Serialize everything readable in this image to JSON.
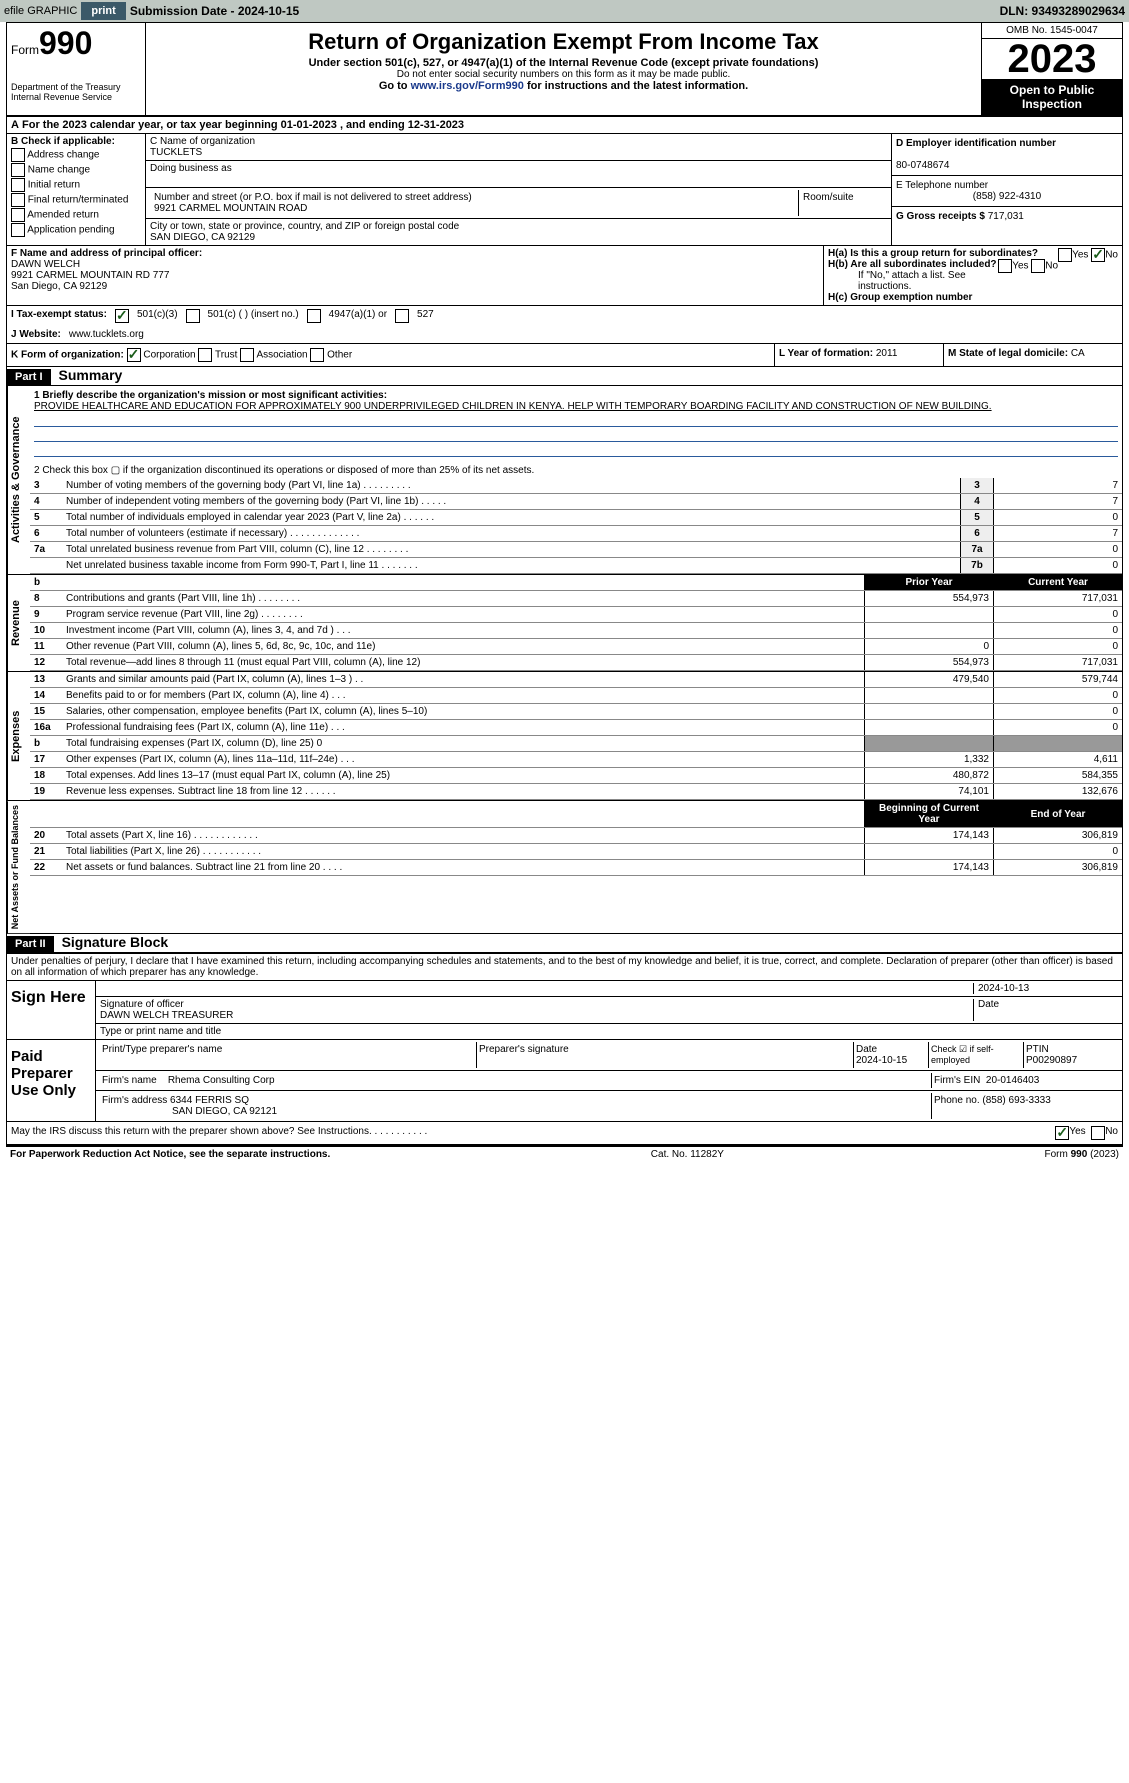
{
  "topbar": {
    "efile": "efile GRAPHIC",
    "print": "print",
    "sub_date_label": "Submission Date - 2024-10-15",
    "dln": "DLN: 93493289029634"
  },
  "header": {
    "form": "Form",
    "num": "990",
    "dept": "Department of the Treasury Internal Revenue Service",
    "title": "Return of Organization Exempt From Income Tax",
    "sub": "Under section 501(c), 527, or 4947(a)(1) of the Internal Revenue Code (except private foundations)",
    "sub2": "Do not enter social security numbers on this form as it may be made public.",
    "sub3": "Go to www.irs.gov/Form990 for instructions and the latest information.",
    "omb": "OMB No. 1545-0047",
    "year": "2023",
    "open": "Open to Public Inspection"
  },
  "row_a": "For the 2023 calendar year, or tax year beginning 01-01-2023   , and ending 12-31-2023",
  "checkboxes_b": [
    "Address change",
    "Name change",
    "Initial return",
    "Final return/terminated",
    "Amended return",
    "Application pending"
  ],
  "check_label": "B Check if applicable:",
  "org": {
    "name_label": "C Name of organization",
    "name": "TUCKLETS",
    "dba_label": "Doing business as",
    "street_label": "Number and street (or P.O. box if mail is not delivered to street address)",
    "room_label": "Room/suite",
    "street": "9921 CARMEL MOUNTAIN ROAD",
    "city_label": "City or town, state or province, country, and ZIP or foreign postal code",
    "city": "SAN DIEGO, CA  92129"
  },
  "ein": {
    "label": "D Employer identification number",
    "value": "80-0748674"
  },
  "phone": {
    "label": "E Telephone number",
    "value": "(858) 922-4310"
  },
  "gross": {
    "label": "G Gross receipts $",
    "value": "717,031"
  },
  "officer": {
    "label": "F  Name and address of principal officer:",
    "name": "DAWN WELCH",
    "addr1": "9921 CARMEL MOUNTAIN RD 777",
    "addr2": "San Diego, CA  92129"
  },
  "h_section": {
    "ha": "H(a)  Is this a group return for subordinates?",
    "hb": "H(b)  Are all subordinates included?",
    "hb_note": "If \"No,\" attach a list. See instructions.",
    "hc": "H(c)  Group exemption number",
    "yes": "Yes",
    "no": "No"
  },
  "tax_status": {
    "label": "I   Tax-exempt status:",
    "opt1": "501(c)(3)",
    "opt2": "501(c) (  ) (insert no.)",
    "opt3": "4947(a)(1) or",
    "opt4": "527"
  },
  "website": {
    "label": "J   Website:",
    "value": "www.tucklets.org"
  },
  "k": {
    "label": "K Form of organization:",
    "corp": "Corporation",
    "trust": "Trust",
    "assoc": "Association",
    "other": "Other"
  },
  "l": {
    "label": "L Year of formation:",
    "value": "2011"
  },
  "m": {
    "label": "M State of legal domicile:",
    "value": "CA"
  },
  "part1": {
    "num": "Part I",
    "title": "Summary"
  },
  "mission": {
    "label": "1   Briefly describe the organization's mission or most significant activities:",
    "text": "PROVIDE HEALTHCARE AND EDUCATION FOR APPROXIMATELY 900 UNDERPRIVILEGED CHILDREN IN KENYA. HELP WITH TEMPORARY BOARDING FACILITY AND CONSTRUCTION OF NEW BUILDING."
  },
  "line2": "2   Check this box  ▢  if the organization discontinued its operations or disposed of more than 25% of its net assets.",
  "gov_rows": [
    {
      "n": "3",
      "t": "Number of voting members of the governing body (Part VI, line 1a)   .   .   .   .   .   .   .   .   .",
      "l": "3",
      "v": "7"
    },
    {
      "n": "4",
      "t": "Number of independent voting members of the governing body (Part VI, line 1b)   .   .   .   .   .",
      "l": "4",
      "v": "7"
    },
    {
      "n": "5",
      "t": "Total number of individuals employed in calendar year 2023 (Part V, line 2a)   .   .   .   .   .   .",
      "l": "5",
      "v": "0"
    },
    {
      "n": "6",
      "t": "Total number of volunteers (estimate if necessary)   .   .   .   .   .   .   .   .   .   .   .   .   .",
      "l": "6",
      "v": "7"
    },
    {
      "n": "7a",
      "t": "Total unrelated business revenue from Part VIII, column (C), line 12   .   .   .   .   .   .   .   .",
      "l": "7a",
      "v": "0"
    },
    {
      "n": "",
      "t": "Net unrelated business taxable income from Form 990-T, Part I, line 11   .   .   .   .   .   .   .",
      "l": "7b",
      "v": "0"
    }
  ],
  "col_headers": {
    "n": "b",
    "prior": "Prior Year",
    "current": "Current Year"
  },
  "rev_rows": [
    {
      "n": "8",
      "t": "Contributions and grants (Part VIII, line 1h)   .   .   .   .   .   .   .   .",
      "p": "554,973",
      "c": "717,031"
    },
    {
      "n": "9",
      "t": "Program service revenue (Part VIII, line 2g)   .   .   .   .   .   .   .   .",
      "p": "",
      "c": "0"
    },
    {
      "n": "10",
      "t": "Investment income (Part VIII, column (A), lines 3, 4, and 7d )   .   .   .",
      "p": "",
      "c": "0"
    },
    {
      "n": "11",
      "t": "Other revenue (Part VIII, column (A), lines 5, 6d, 8c, 9c, 10c, and 11e)",
      "p": "0",
      "c": "0"
    },
    {
      "n": "12",
      "t": "Total revenue—add lines 8 through 11 (must equal Part VIII, column (A), line 12)",
      "p": "554,973",
      "c": "717,031"
    }
  ],
  "exp_rows": [
    {
      "n": "13",
      "t": "Grants and similar amounts paid (Part IX, column (A), lines 1–3 )   .   .",
      "p": "479,540",
      "c": "579,744"
    },
    {
      "n": "14",
      "t": "Benefits paid to or for members (Part IX, column (A), line 4)   .   .   .",
      "p": "",
      "c": "0"
    },
    {
      "n": "15",
      "t": "Salaries, other compensation, employee benefits (Part IX, column (A), lines 5–10)",
      "p": "",
      "c": "0"
    },
    {
      "n": "16a",
      "t": "Professional fundraising fees (Part IX, column (A), line 11e)   .   .   .",
      "p": "",
      "c": "0"
    },
    {
      "n": "b",
      "t": "Total fundraising expenses (Part IX, column (D), line 25) 0",
      "p": "—shade—",
      "c": "—shade—"
    },
    {
      "n": "17",
      "t": "Other expenses (Part IX, column (A), lines 11a–11d, 11f–24e)   .   .   .",
      "p": "1,332",
      "c": "4,611"
    },
    {
      "n": "18",
      "t": "Total expenses. Add lines 13–17 (must equal Part IX, column (A), line 25)",
      "p": "480,872",
      "c": "584,355"
    },
    {
      "n": "19",
      "t": "Revenue less expenses. Subtract line 18 from line 12   .   .   .   .   .   .",
      "p": "74,101",
      "c": "132,676"
    }
  ],
  "na_headers": {
    "prior": "Beginning of Current Year",
    "current": "End of Year"
  },
  "na_rows": [
    {
      "n": "20",
      "t": "Total assets (Part X, line 16)   .   .   .   .   .   .   .   .   .   .   .   .",
      "p": "174,143",
      "c": "306,819"
    },
    {
      "n": "21",
      "t": "Total liabilities (Part X, line 26)   .   .   .   .   .   .   .   .   .   .   .",
      "p": "",
      "c": "0"
    },
    {
      "n": "22",
      "t": "Net assets or fund balances. Subtract line 21 from line 20   .   .   .   .",
      "p": "174,143",
      "c": "306,819"
    }
  ],
  "part2": {
    "num": "Part II",
    "title": "Signature Block"
  },
  "perjury": "Under penalties of perjury, I declare that I have examined this return, including accompanying schedules and statements, and to the best of my knowledge and belief, it is true, correct, and complete. Declaration of preparer (other than officer) is based on all information of which preparer has any knowledge.",
  "sign": {
    "here": "Sign Here",
    "sig_label": "Signature of officer",
    "date": "2024-10-13",
    "officer": "DAWN WELCH  TREASURER",
    "type_label": "Type or print name and title"
  },
  "paid": {
    "label": "Paid Preparer Use Only",
    "name_label": "Print/Type preparer's name",
    "sig_label": "Preparer's signature",
    "date_label": "Date",
    "date": "2024-10-15",
    "check_label": "Check ☑ if self-employed",
    "ptin_label": "PTIN",
    "ptin": "P00290897",
    "firm_name_label": "Firm's name",
    "firm_name": "Rhema Consulting Corp",
    "firm_ein_label": "Firm's EIN",
    "firm_ein": "20-0146403",
    "firm_addr_label": "Firm's address",
    "firm_addr": "6344 FERRIS SQ",
    "firm_city": "SAN DIEGO, CA  92121",
    "phone_label": "Phone no.",
    "phone": "(858) 693-3333"
  },
  "discuss": "May the IRS discuss this return with the preparer shown above? See Instructions.   .   .   .   .   .   .   .   .   .   .",
  "footer": {
    "left": "For Paperwork Reduction Act Notice, see the separate instructions.",
    "mid": "Cat. No. 11282Y",
    "right": "Form 990 (2023)"
  },
  "side_labels": {
    "gov": "Activities & Governance",
    "rev": "Revenue",
    "exp": "Expenses",
    "na": "Net Assets or Fund Balances"
  }
}
